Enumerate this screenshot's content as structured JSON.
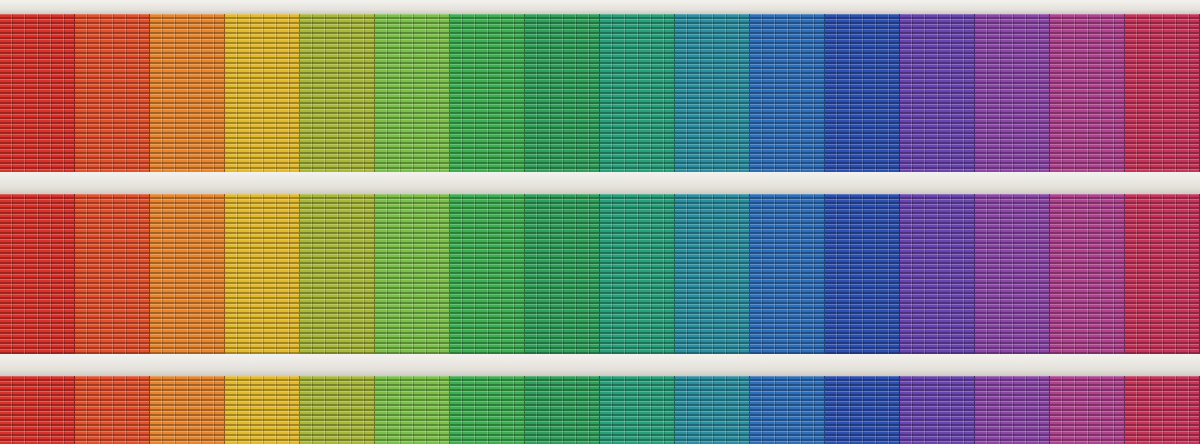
{
  "palette": [
    "#d9322b",
    "#e2502d",
    "#e7862f",
    "#e3b92d",
    "#a9b83a",
    "#7cc04a",
    "#3fae52",
    "#2f9f5a",
    "#2aa07a",
    "#2b8fa0",
    "#2f6fb9",
    "#2d4fb0",
    "#6a45b0",
    "#8b46a8",
    "#b0438f",
    "#c7345a"
  ],
  "slab_color": "#e9e7e2"
}
